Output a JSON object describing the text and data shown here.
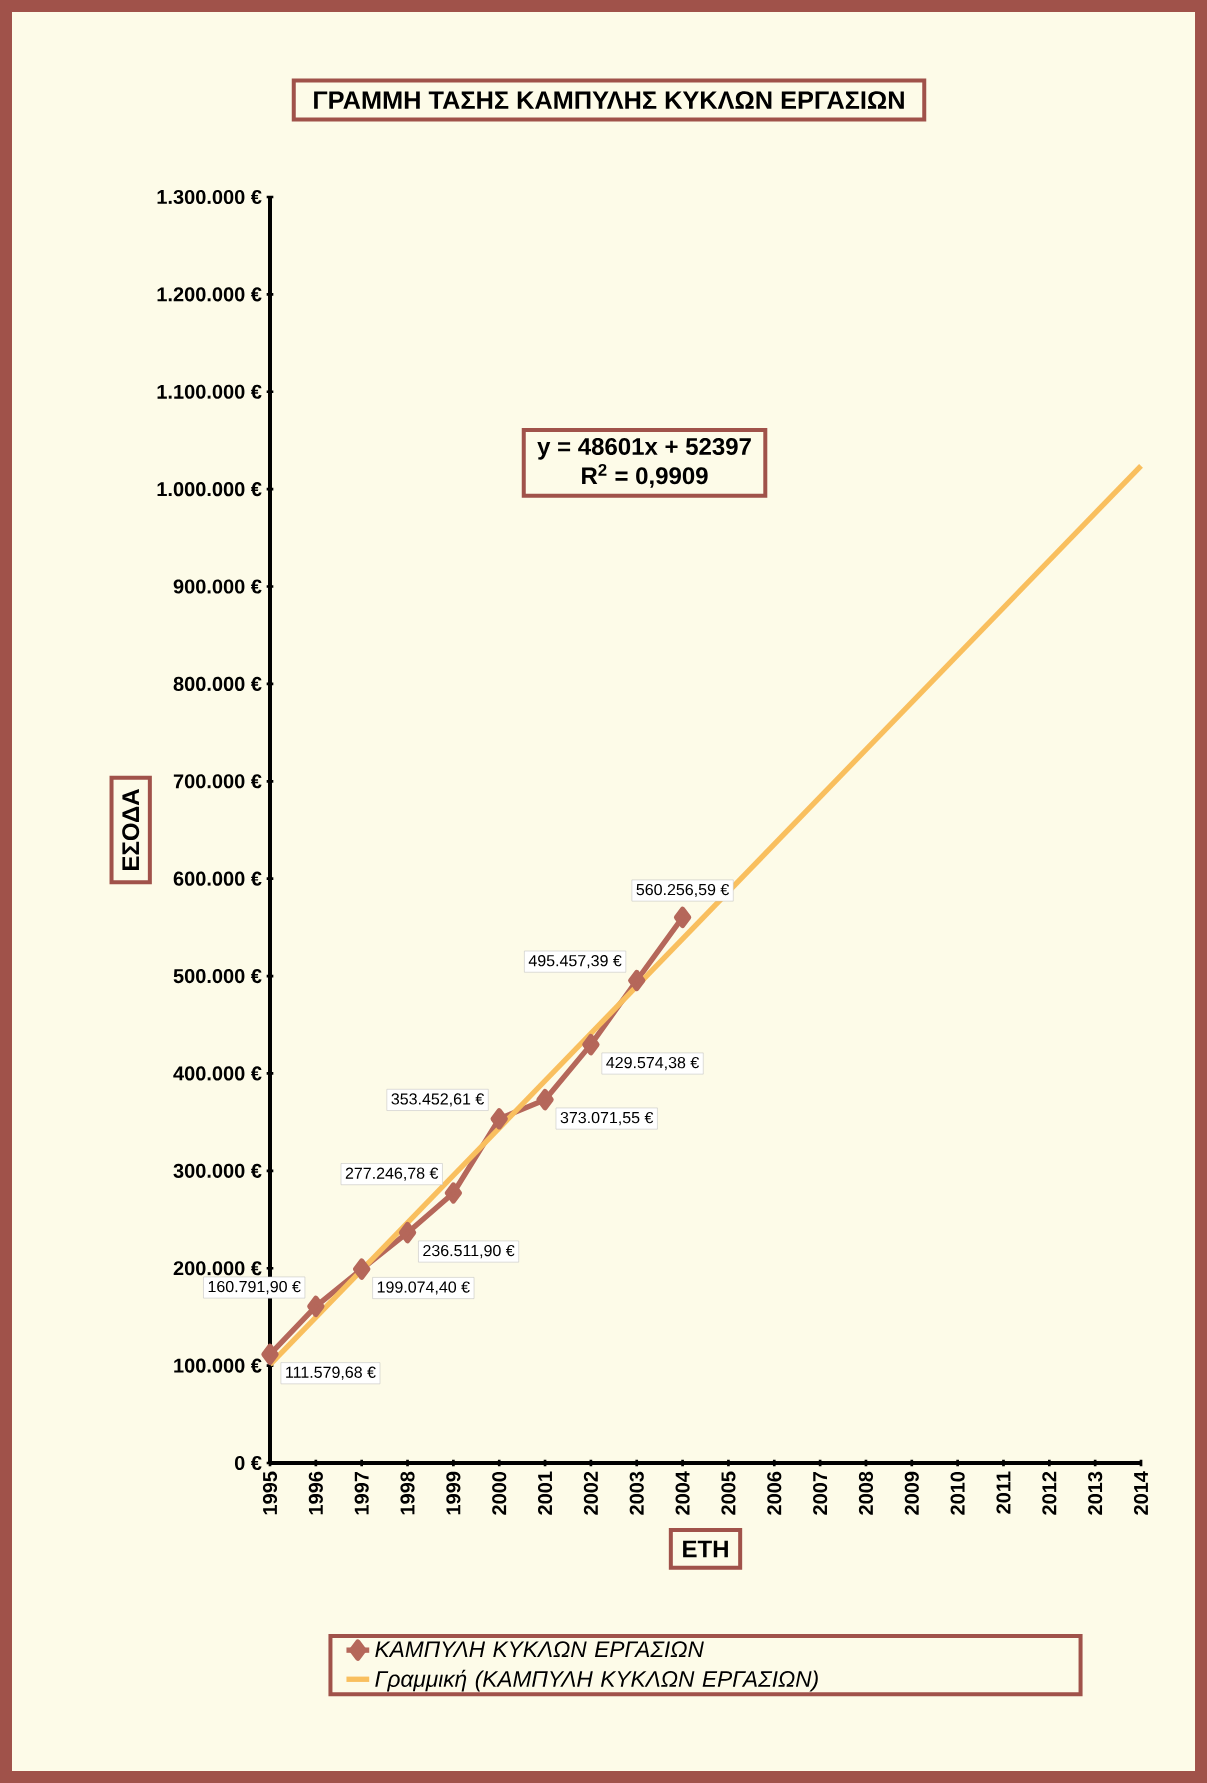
{
  "chart_data": {
    "type": "line",
    "title": "ΓΡΑΜΜΗ ΤΑΣΗΣ ΚΑΜΠΥΛΗΣ ΚΥΚΛΩΝ ΕΡΓΑΣΙΩΝ",
    "xlabel": "ΕΤΗ",
    "ylabel": "ΕΣΟΔΑ",
    "xlim": [
      1995,
      2014
    ],
    "xticks": [
      1995,
      1996,
      1997,
      1998,
      1999,
      2000,
      2001,
      2002,
      2003,
      2004,
      2005,
      2006,
      2007,
      2008,
      2009,
      2010,
      2011,
      2012,
      2013,
      2014
    ],
    "ylim": [
      0,
      1300000
    ],
    "yticks": [
      {
        "value": 0,
        "label": "0 €"
      },
      {
        "value": 100000,
        "label": "100.000 €"
      },
      {
        "value": 200000,
        "label": "200.000 €"
      },
      {
        "value": 300000,
        "label": "300.000 €"
      },
      {
        "value": 400000,
        "label": "400.000 €"
      },
      {
        "value": 500000,
        "label": "500.000 €"
      },
      {
        "value": 600000,
        "label": "600.000 €"
      },
      {
        "value": 700000,
        "label": "700.000 €"
      },
      {
        "value": 800000,
        "label": "800.000 €"
      },
      {
        "value": 900000,
        "label": "900.000 €"
      },
      {
        "value": 1000000,
        "label": "1.000.000 €"
      },
      {
        "value": 1100000,
        "label": "1.100.000 €"
      },
      {
        "value": 1200000,
        "label": "1.200.000 €"
      },
      {
        "value": 1300000,
        "label": "1.300.000 €"
      }
    ],
    "grid": false,
    "legend": "bottom",
    "annotations": [
      "y = 48601x + 52397",
      "R$^{2}$ = 0,9909"
    ],
    "series": [
      {
        "name": "ΚΑΜΠΥΛΗ ΚΥΚΛΩΝ ΕΡΓΑΣΙΩΝ",
        "color": "#b5675a",
        "marker": "diamond",
        "x": [
          1995,
          1996,
          1997,
          1998,
          1999,
          2000,
          2001,
          2002,
          2003,
          2004
        ],
        "values": [
          111579.68,
          160791.9,
          199074.4,
          236511.9,
          277246.78,
          353452.61,
          373071.55,
          429574.38,
          495457.39,
          560256.59
        ],
        "value_labels": [
          "111.579,68 €",
          "160.791,90 €",
          "199.074,40 €",
          "236.511,90 €",
          "277.246,78 €",
          "353.452,61 €",
          "373.071,55 €",
          "429.574,38 €",
          "495.457,39 €",
          "560.256,59 €"
        ]
      },
      {
        "name": "Γραμμική (ΚΑΜΠΥΛΗ ΚΥΚΛΩΝ ΕΡΓΑΣΙΩΝ)",
        "color": "#f9bf5e",
        "marker": "none",
        "x": [
          1995,
          2014
        ],
        "values": [
          101000,
          1024000
        ]
      }
    ]
  }
}
